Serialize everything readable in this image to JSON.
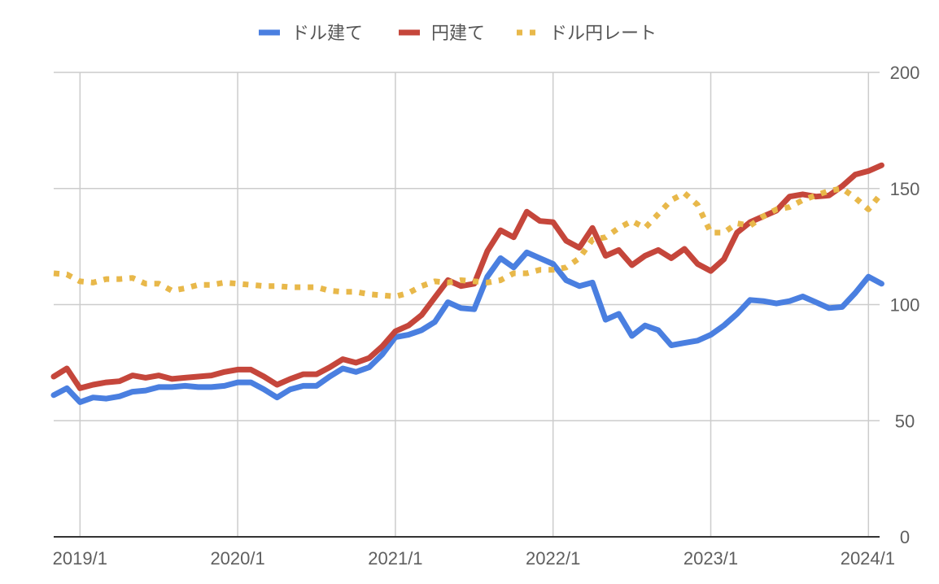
{
  "chart_data": {
    "type": "line",
    "title": "",
    "xlabel": "",
    "ylabel": "",
    "ylim": [
      0,
      200
    ],
    "yticks": [
      "0",
      "50",
      "100",
      "150",
      "200"
    ],
    "xticks": [
      "2019/1",
      "2020/1",
      "2021/1",
      "2022/1",
      "2023/1",
      "2024/1"
    ],
    "x_range": [
      "2018/11",
      "2024/2"
    ],
    "grid": true,
    "legend_position": "top",
    "x": [
      "2018/11",
      "2018/12",
      "2019/1",
      "2019/2",
      "2019/3",
      "2019/4",
      "2019/5",
      "2019/6",
      "2019/7",
      "2019/8",
      "2019/9",
      "2019/10",
      "2019/11",
      "2019/12",
      "2020/1",
      "2020/2",
      "2020/3",
      "2020/4",
      "2020/5",
      "2020/6",
      "2020/7",
      "2020/8",
      "2020/9",
      "2020/10",
      "2020/11",
      "2020/12",
      "2021/1",
      "2021/2",
      "2021/3",
      "2021/4",
      "2021/5",
      "2021/6",
      "2021/7",
      "2021/8",
      "2021/9",
      "2021/10",
      "2021/11",
      "2021/12",
      "2022/1",
      "2022/2",
      "2022/3",
      "2022/4",
      "2022/5",
      "2022/6",
      "2022/7",
      "2022/8",
      "2022/9",
      "2022/10",
      "2022/11",
      "2022/12",
      "2023/1",
      "2023/2",
      "2023/3",
      "2023/4",
      "2023/5",
      "2023/6",
      "2023/7",
      "2023/8",
      "2023/9",
      "2023/10",
      "2023/11",
      "2023/12",
      "2024/1",
      "2024/2"
    ],
    "series": [
      {
        "name": "ドル建て",
        "color": "#4a7fe0",
        "style": "solid",
        "values": [
          61,
          64,
          58,
          60,
          59.5,
          60.5,
          62.5,
          63,
          64.5,
          64.5,
          65,
          64.5,
          64.5,
          65,
          66.5,
          66.5,
          63.5,
          60,
          63.5,
          65,
          65,
          69,
          72.5,
          71,
          73,
          78.5,
          86,
          87,
          89,
          92.5,
          101,
          98.5,
          98,
          112,
          120,
          116,
          122.5,
          120,
          117.5,
          110.5,
          108,
          109.5,
          93.5,
          96,
          86.5,
          91,
          89,
          82.5,
          83.5,
          84.5,
          87,
          91,
          96,
          102,
          101.5,
          100.5,
          101.5,
          103.5,
          101,
          98.5,
          99,
          105,
          112,
          109
        ]
      },
      {
        "name": "円建て",
        "color": "#c5463b",
        "style": "solid",
        "values": [
          69,
          72.5,
          64,
          65.5,
          66.5,
          67,
          69.5,
          68.5,
          69.5,
          68,
          68.5,
          69,
          69.5,
          71,
          72,
          72,
          69,
          65.5,
          68,
          70,
          70,
          73,
          76.5,
          75,
          77,
          82,
          88.5,
          91,
          95.5,
          103,
          110.5,
          108,
          109,
          123,
          132,
          129,
          140,
          136,
          135.5,
          127.5,
          124.5,
          133,
          121,
          123.5,
          117,
          121,
          123.5,
          120,
          124,
          117.5,
          114.5,
          119.5,
          131,
          135.5,
          138,
          140.5,
          146.5,
          147.5,
          146.5,
          147,
          151,
          156,
          157.5,
          160
        ]
      },
      {
        "name": "ドル円レート",
        "color": "#e8b84a",
        "style": "dotted",
        "values": [
          113.5,
          113,
          110,
          109.5,
          111,
          111,
          111.5,
          109,
          109,
          106,
          107,
          108.5,
          108.5,
          109.5,
          109,
          108.5,
          108,
          108,
          107.5,
          107.5,
          107.5,
          106,
          105.5,
          105.5,
          104.5,
          104,
          103.5,
          105,
          108,
          110,
          109.5,
          110.5,
          110,
          109.5,
          110.5,
          113.5,
          113.5,
          115,
          115,
          116,
          120,
          128,
          129,
          133,
          136,
          133,
          139,
          145,
          148,
          143,
          131,
          131,
          135,
          134,
          138,
          141,
          142,
          145,
          147,
          149,
          150,
          146,
          141,
          148
        ]
      }
    ]
  }
}
